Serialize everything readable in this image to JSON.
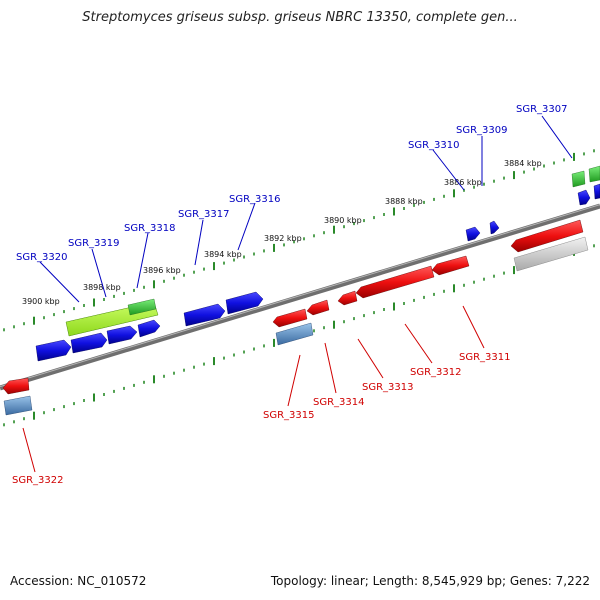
{
  "title": "Streptomyces griseus subsp. griseus NBRC 13350, complete gen...",
  "footer": {
    "accession": "Accession: NC_010572",
    "summary": "Topology: linear; Length: 8,545,929 bp; Genes: 7,222"
  },
  "colors": {
    "forward_gene": "#1010e0",
    "reverse_gene": "#e81010",
    "rna_gene": "#30c030",
    "forward_label": "#0000c0",
    "reverse_label": "#d00000",
    "backbone": "#7a7a7a",
    "ticks": "#2a8a2a"
  },
  "scale_labels": [
    "3884 kbp",
    "3886 kbp",
    "3888 kbp",
    "3890 kbp",
    "3892 kbp",
    "3894 kbp",
    "3896 kbp",
    "3898 kbp",
    "3900 kbp"
  ],
  "forward_gene_labels": [
    "SGR_3307",
    "SGR_3309",
    "SGR_3310",
    "SGR_3316",
    "SGR_3317",
    "SGR_3318",
    "SGR_3319",
    "SGR_3320"
  ],
  "reverse_gene_labels": [
    "SGR_3311",
    "SGR_3312",
    "SGR_3313",
    "SGR_3314",
    "SGR_3315",
    "SGR_3322"
  ]
}
